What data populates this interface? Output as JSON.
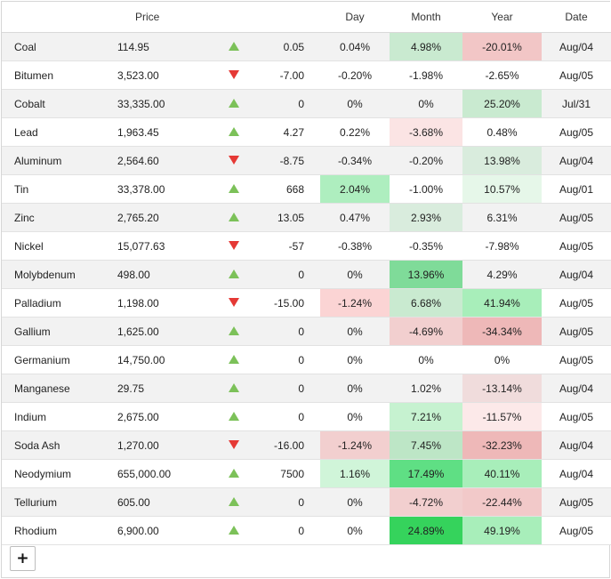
{
  "columns": {
    "name": "",
    "price": "Price",
    "trend": "",
    "change": "",
    "day": "Day",
    "month": "Month",
    "year": "Year",
    "date": "Date"
  },
  "colors": {
    "up_arrow": "#7cc159",
    "down_arrow": "#e53935"
  },
  "rows": [
    {
      "name": "Coal",
      "price": "114.95",
      "trend": "up",
      "change": "0.05",
      "day": "0.04%",
      "month": "4.98%",
      "year": "-20.01%",
      "date": "Aug/04",
      "bg": {
        "month": "#c9ead0",
        "year": "#f2c6c6"
      }
    },
    {
      "name": "Bitumen",
      "price": "3,523.00",
      "trend": "down",
      "change": "-7.00",
      "day": "-0.20%",
      "month": "-1.98%",
      "year": "-2.65%",
      "date": "Aug/05",
      "bg": {}
    },
    {
      "name": "Cobalt",
      "price": "33,335.00",
      "trend": "up",
      "change": "0",
      "day": "0%",
      "month": "0%",
      "year": "25.20%",
      "date": "Jul/31",
      "bg": {
        "year": "#c9ead0"
      }
    },
    {
      "name": "Lead",
      "price": "1,963.45",
      "trend": "up",
      "change": "4.27",
      "day": "0.22%",
      "month": "-3.68%",
      "year": "0.48%",
      "date": "Aug/05",
      "bg": {
        "month": "#fbe4e4"
      }
    },
    {
      "name": "Aluminum",
      "price": "2,564.60",
      "trend": "down",
      "change": "-8.75",
      "day": "-0.34%",
      "month": "-0.20%",
      "year": "13.98%",
      "date": "Aug/04",
      "bg": {
        "year": "#d9ecdd"
      }
    },
    {
      "name": "Tin",
      "price": "33,378.00",
      "trend": "up",
      "change": "668",
      "day": "2.04%",
      "month": "-1.00%",
      "year": "10.57%",
      "date": "Aug/01",
      "bg": {
        "day": "#aeeebf",
        "year": "#e6f7e9"
      }
    },
    {
      "name": "Zinc",
      "price": "2,765.20",
      "trend": "up",
      "change": "13.05",
      "day": "0.47%",
      "month": "2.93%",
      "year": "6.31%",
      "date": "Aug/05",
      "bg": {
        "month": "#d9ecdd"
      }
    },
    {
      "name": "Nickel",
      "price": "15,077.63",
      "trend": "down",
      "change": "-57",
      "day": "-0.38%",
      "month": "-0.35%",
      "year": "-7.98%",
      "date": "Aug/05",
      "bg": {}
    },
    {
      "name": "Molybdenum",
      "price": "498.00",
      "trend": "up",
      "change": "0",
      "day": "0%",
      "month": "13.96%",
      "year": "4.29%",
      "date": "Aug/04",
      "bg": {
        "month": "#7fdb99"
      }
    },
    {
      "name": "Palladium",
      "price": "1,198.00",
      "trend": "down",
      "change": "-15.00",
      "day": "-1.24%",
      "month": "6.68%",
      "year": "41.94%",
      "date": "Aug/05",
      "bg": {
        "day": "#fbd4d4",
        "month": "#c9ead0",
        "year": "#a8eeba"
      }
    },
    {
      "name": "Gallium",
      "price": "1,625.00",
      "trend": "up",
      "change": "0",
      "day": "0%",
      "month": "-4.69%",
      "year": "-34.34%",
      "date": "Aug/05",
      "bg": {
        "month": "#f2cfcf",
        "year": "#eeb8b8"
      }
    },
    {
      "name": "Germanium",
      "price": "14,750.00",
      "trend": "up",
      "change": "0",
      "day": "0%",
      "month": "0%",
      "year": "0%",
      "date": "Aug/05",
      "bg": {}
    },
    {
      "name": "Manganese",
      "price": "29.75",
      "trend": "up",
      "change": "0",
      "day": "0%",
      "month": "1.02%",
      "year": "-13.14%",
      "date": "Aug/04",
      "bg": {
        "year": "#f0dcdc"
      }
    },
    {
      "name": "Indium",
      "price": "2,675.00",
      "trend": "up",
      "change": "0",
      "day": "0%",
      "month": "7.21%",
      "year": "-11.57%",
      "date": "Aug/05",
      "bg": {
        "month": "#c6f2d0",
        "year": "#fce9e9"
      }
    },
    {
      "name": "Soda Ash",
      "price": "1,270.00",
      "trend": "down",
      "change": "-16.00",
      "day": "-1.24%",
      "month": "7.45%",
      "year": "-32.23%",
      "date": "Aug/04",
      "bg": {
        "day": "#f2cfcf",
        "month": "#bde6c6",
        "year": "#eeb8b8"
      }
    },
    {
      "name": "Neodymium",
      "price": "655,000.00",
      "trend": "up",
      "change": "7500",
      "day": "1.16%",
      "month": "17.49%",
      "year": "40.11%",
      "date": "Aug/04",
      "bg": {
        "day": "#d0f5d9",
        "month": "#5fdf84",
        "year": "#a8eeba"
      }
    },
    {
      "name": "Tellurium",
      "price": "605.00",
      "trend": "up",
      "change": "0",
      "day": "0%",
      "month": "-4.72%",
      "year": "-22.44%",
      "date": "Aug/05",
      "bg": {
        "month": "#f2cfcf",
        "year": "#f2c9c9"
      }
    },
    {
      "name": "Rhodium",
      "price": "6,900.00",
      "trend": "up",
      "change": "0",
      "day": "0%",
      "month": "24.89%",
      "year": "49.19%",
      "date": "Aug/05",
      "bg": {
        "month": "#35d35c",
        "year": "#a8eeba"
      }
    }
  ],
  "add_button": {
    "label": "+"
  }
}
